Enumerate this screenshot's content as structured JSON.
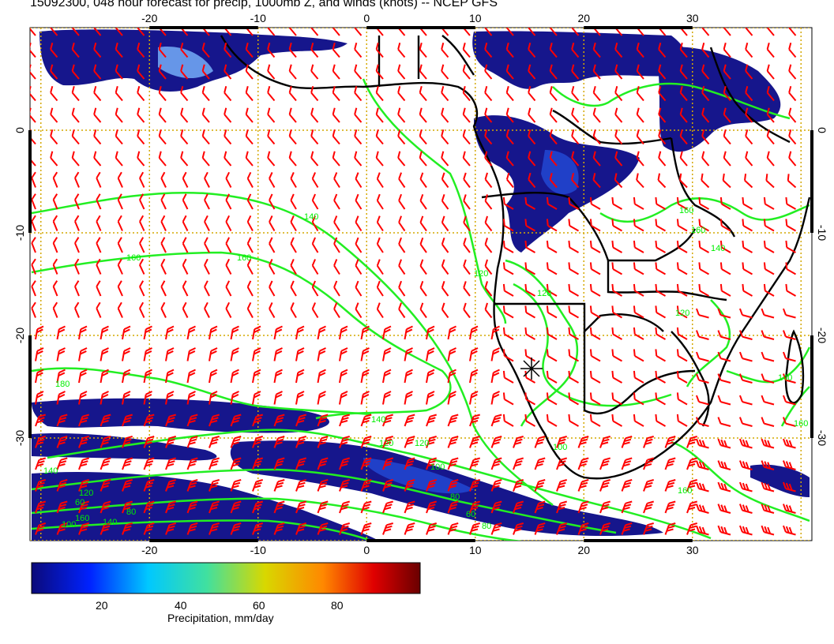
{
  "title": "15092300, 048 hour forecast for precip, 1000mb Z, and winds (knots) -- NCEP GFS",
  "map": {
    "lon_range": [
      -31,
      41
    ],
    "lat_range": [
      -40,
      10
    ],
    "lon_ticks": [
      "-20",
      "-10",
      "0",
      "10",
      "20",
      "30"
    ],
    "lat_ticks": [
      "0",
      "-10",
      "-20",
      "-30"
    ],
    "contour_labels": [
      "140",
      "160",
      "160",
      "120",
      "120",
      "160",
      "160",
      "140",
      "120",
      "180",
      "140",
      "160",
      "140",
      "120",
      "100",
      "80",
      "60",
      "80",
      "100",
      "120",
      "160",
      "140",
      "160",
      "140",
      "60",
      "80",
      "100",
      "120"
    ],
    "colors": {
      "precip_dark": "#16168c",
      "precip_mid": "#2040c8",
      "precip_light": "#7ab6ff",
      "contour": "#22ee22",
      "wind_barb": "#ff0000",
      "grid": "#d4a800",
      "coast": "#000000"
    }
  },
  "colorbar": {
    "label": "Precipitation, mm/day",
    "ticks": [
      "20",
      "40",
      "60",
      "80"
    ],
    "range": [
      0,
      100
    ]
  }
}
